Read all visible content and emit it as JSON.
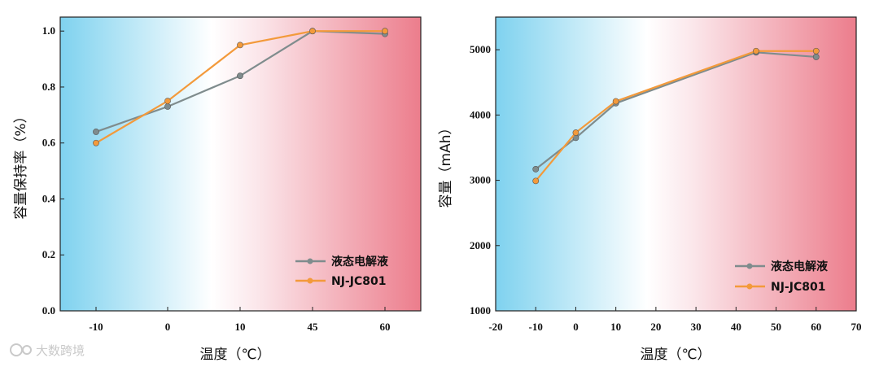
{
  "colors": {
    "series_gray": "#7f8c8d",
    "series_orange": "#f39a3b",
    "bg_cold": "#7fd2ef",
    "bg_mid": "#ffffff",
    "bg_hot": "#ec7d8c"
  },
  "watermark": "大数跨境",
  "chart_data": [
    {
      "type": "line",
      "title": "",
      "xlabel": "温度（℃）",
      "ylabel": "容量保持率（%）",
      "x_scale": "categorical",
      "categories": [
        "-10",
        "0",
        "10",
        "45",
        "60"
      ],
      "ylim": [
        0.0,
        1.05
      ],
      "yticks": [
        "0.0",
        "0.2",
        "0.4",
        "0.6",
        "0.8",
        "1.0"
      ],
      "legend_position": "bottom-right",
      "series": [
        {
          "name": "液态电解液",
          "color": "#7f8c8d",
          "values": [
            0.64,
            0.73,
            0.84,
            1.0,
            0.99
          ]
        },
        {
          "name": "NJ-JC801",
          "color": "#f39a3b",
          "values": [
            0.6,
            0.75,
            0.95,
            1.0,
            1.0
          ]
        }
      ]
    },
    {
      "type": "line",
      "title": "",
      "xlabel": "温度（℃）",
      "ylabel": "容量（mAh）",
      "x_scale": "linear",
      "xlim": [
        -20,
        70
      ],
      "xticks": [
        "-20",
        "-10",
        "0",
        "10",
        "20",
        "30",
        "40",
        "50",
        "60",
        "70"
      ],
      "ylim": [
        1000,
        5500
      ],
      "yticks": [
        "1000",
        "2000",
        "3000",
        "4000",
        "5000"
      ],
      "legend_position": "bottom-right",
      "series": [
        {
          "name": "液态电解液",
          "color": "#7f8c8d",
          "x": [
            -10,
            0,
            10,
            45,
            60
          ],
          "values": [
            3170,
            3650,
            4180,
            4960,
            4890
          ]
        },
        {
          "name": "NJ-JC801",
          "color": "#f39a3b",
          "x": [
            -10,
            0,
            10,
            45,
            60
          ],
          "values": [
            2990,
            3730,
            4210,
            4980,
            4980
          ]
        }
      ]
    }
  ]
}
